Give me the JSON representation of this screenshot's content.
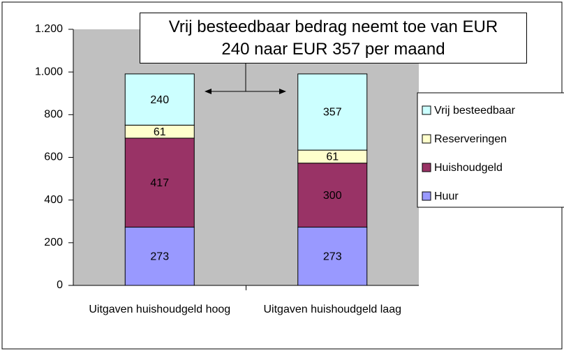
{
  "chart_data": {
    "type": "stacked_bar",
    "annotation": "Vrij besteedbaar bedrag neemt toe van EUR 240 naar EUR 357 per maand",
    "categories": [
      "Uitgaven huishoudgeld hoog",
      "Uitgaven huishoudgeld laag"
    ],
    "series": [
      {
        "name": "Huur",
        "color": "#9999ff",
        "values": [
          273,
          273
        ]
      },
      {
        "name": "Huishoudgeld",
        "color": "#993366",
        "values": [
          417,
          300
        ]
      },
      {
        "name": "Reserveringen",
        "color": "#ffffcc",
        "values": [
          61,
          61
        ]
      },
      {
        "name": "Vrij besteedbaar",
        "color": "#ccffff",
        "values": [
          240,
          357
        ]
      }
    ],
    "ylim": [
      0,
      1200
    ],
    "yticks": [
      0,
      200,
      400,
      600,
      800,
      {
        "value": 1000,
        "label": "1.000"
      },
      {
        "value": 1200,
        "label": "1.200"
      }
    ],
    "grid": false,
    "legend": "right"
  }
}
